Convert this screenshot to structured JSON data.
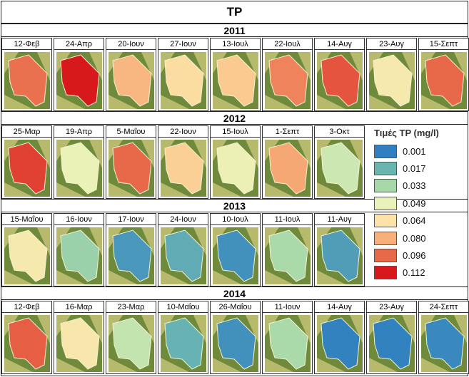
{
  "title": "TP",
  "years": [
    {
      "year": "2011",
      "dates": [
        "12-Φεβ",
        "24-Απρ",
        "20-Ιουν",
        "27-Ιουν",
        "13-Ιουλ",
        "22-Ιουλ",
        "14-Αυγ",
        "23-Αυγ",
        "15-Σεπτ"
      ],
      "levels": [
        0.094,
        0.112,
        0.078,
        0.066,
        0.072,
        0.09,
        0.1,
        0.058,
        0.096
      ]
    },
    {
      "year": "2012",
      "dates": [
        "25-Μαρ",
        "19-Απρ",
        "5-Μαΐου",
        "22-Ιουν",
        "15-Ιουλ",
        "1-Σεπτ",
        "3-Οκτ"
      ],
      "levels": [
        0.104,
        0.05,
        0.096,
        0.07,
        0.052,
        0.082,
        0.042
      ]
    },
    {
      "year": "2013",
      "dates": [
        "15-Μαΐου",
        "16-Ιουν",
        "17-Ιουν",
        "24-Ιουν",
        "10-Ιουλ",
        "11-Ιουλ",
        "11-Αυγ"
      ],
      "levels": [
        0.058,
        0.03,
        0.008,
        0.014,
        0.006,
        0.034,
        0.01
      ]
    },
    {
      "year": "2014",
      "dates": [
        "12-Φεβ",
        "16-Μαρ",
        "23-Μαρ",
        "10-Μαΐου",
        "26-Μαΐου",
        "11-Ιουν",
        "14-Αυγ",
        "23-Αυγ",
        "24-Σεπτ"
      ],
      "levels": [
        0.098,
        0.06,
        0.04,
        0.016,
        0.006,
        0.034,
        0.002,
        0.002,
        0.004
      ]
    }
  ],
  "legend": {
    "title": "Τιμές TP (mg/l)",
    "items": [
      {
        "value": "0.001",
        "color": "#2f7fc1"
      },
      {
        "value": "0.017",
        "color": "#6bb5b1"
      },
      {
        "value": "0.033",
        "color": "#a6d8a8"
      },
      {
        "value": "0.049",
        "color": "#e9f3b9"
      },
      {
        "value": "0.064",
        "color": "#fde3a7"
      },
      {
        "value": "0.080",
        "color": "#f7b07a"
      },
      {
        "value": "0.096",
        "color": "#e8684a"
      },
      {
        "value": "0.112",
        "color": "#d7191c"
      }
    ]
  },
  "colors": {
    "vegetation": "#6f8a3a",
    "vegetation_light": "#c9c67a",
    "field": "#e6e2b8"
  }
}
